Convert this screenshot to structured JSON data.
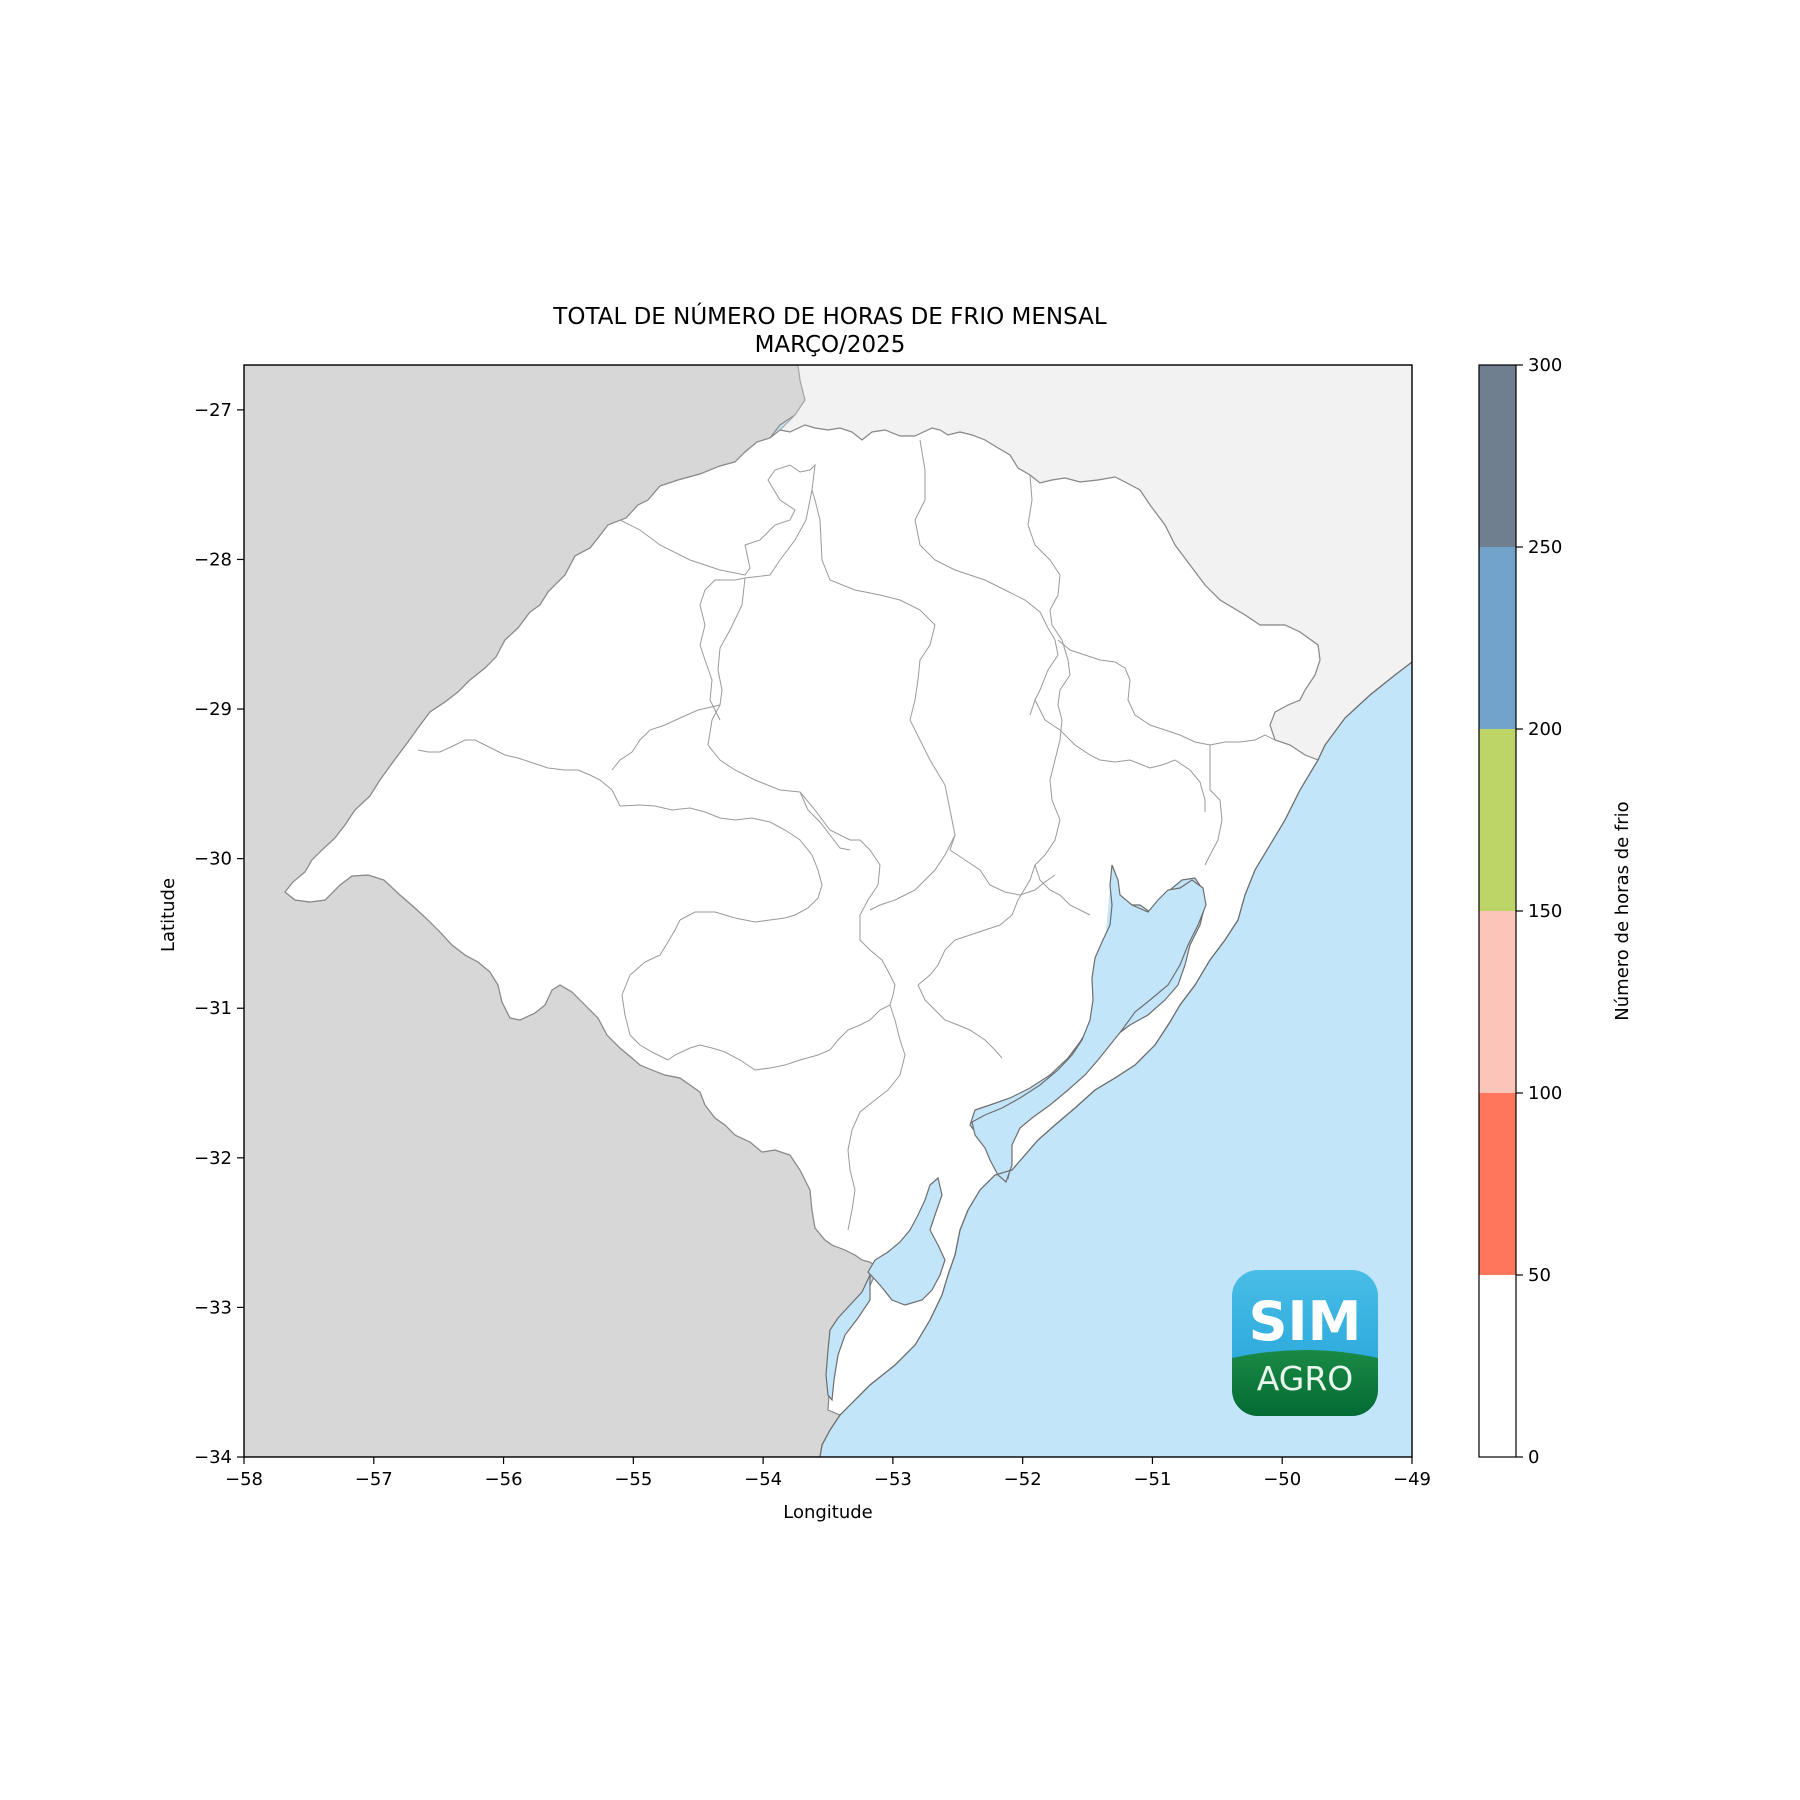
{
  "title": "TOTAL DE NÚMERO DE HORAS DE FRIO MENSAL",
  "subtitle": "MARÇO/2025",
  "axes": {
    "xlabel": "Longitude",
    "ylabel": "Latitude",
    "xlim": [
      -58,
      -49
    ],
    "ylim": [
      -34,
      -26.7
    ],
    "xticks": [
      -58,
      -57,
      -56,
      -55,
      -54,
      -53,
      -52,
      -51,
      -50,
      -49
    ],
    "yticks": [
      -34,
      -33,
      -32,
      -31,
      -30,
      -29,
      -28,
      -27
    ],
    "xtick_labels": [
      "−58",
      "−57",
      "−56",
      "−55",
      "−54",
      "−53",
      "−52",
      "−51",
      "−50",
      "−49"
    ],
    "ytick_labels": [
      "−34",
      "−33",
      "−32",
      "−31",
      "−30",
      "−29",
      "−28",
      "−27"
    ]
  },
  "colorbar": {
    "label": "Número de horas de frio",
    "range": [
      0,
      300
    ],
    "ticks": [
      "0",
      "50",
      "100",
      "150",
      "200",
      "250",
      "300"
    ],
    "bins": [
      {
        "from": 0,
        "to": 50,
        "color": "#ffffff"
      },
      {
        "from": 50,
        "to": 100,
        "color": "#ff765c"
      },
      {
        "from": 100,
        "to": 150,
        "color": "#fbc6b9"
      },
      {
        "from": 150,
        "to": 200,
        "color": "#bdd566"
      },
      {
        "from": 200,
        "to": 250,
        "color": "#72a3cb"
      },
      {
        "from": 250,
        "to": 300,
        "color": "#6f7f8f"
      }
    ]
  },
  "map_colors": {
    "ocean": "#c3e5fa",
    "neighbor_countries": "#d7d7d7",
    "neighbor_state": "#f2f2f2",
    "region_fill": "#ffffff",
    "boundary": "#8a8a8a"
  },
  "logo": {
    "line1": "SIM",
    "line2": "AGRO",
    "top_color": "#2aa8d8",
    "bottom_color": "#0b7a3b"
  }
}
